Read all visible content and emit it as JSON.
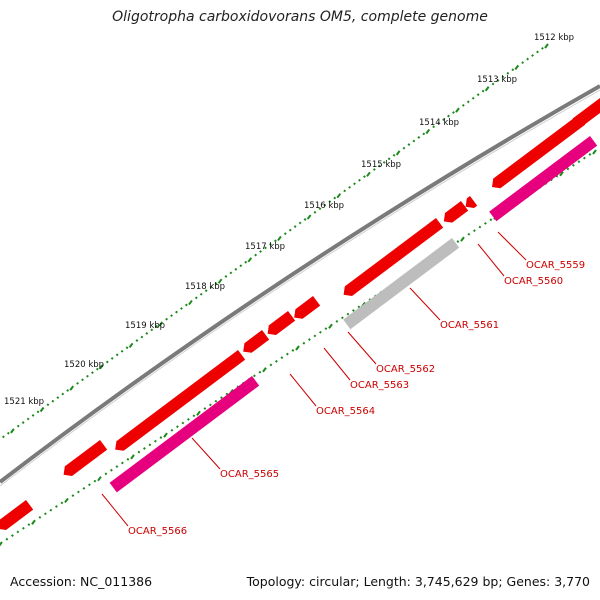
{
  "title": "Oligotropha carboxidovorans OM5, complete genome",
  "accession": "Accession: NC_011386",
  "summary": "Topology: circular; Length: 3,745,629 bp; Genes: 3,770",
  "colors": {
    "backbone": "#7a7a7a",
    "cds": "#ee0000",
    "cds_alt": "#e6007e",
    "cds_grey": "#bdbdbd",
    "ticks": "#1a8a1a",
    "label": "#cc0000"
  },
  "kbp_labels": [
    "1512 kbp",
    "1513 kbp",
    "1514 kbp",
    "1515 kbp",
    "1516 kbp",
    "1517 kbp",
    "1518 kbp",
    "1519 kbp",
    "1520 kbp",
    "1521 kbp"
  ],
  "genes": [
    {
      "label": "OCAR_5559",
      "color": "cds_alt"
    },
    {
      "label": "OCAR_5560",
      "color": "cds"
    },
    {
      "label": "OCAR_5561",
      "color": "cds_grey"
    },
    {
      "label": "OCAR_5562",
      "color": "cds"
    },
    {
      "label": "OCAR_5563",
      "color": "cds"
    },
    {
      "label": "OCAR_5564",
      "color": "cds"
    },
    {
      "label": "OCAR_5565",
      "color": "cds_alt"
    },
    {
      "label": "OCAR_5566",
      "color": "cds"
    }
  ]
}
